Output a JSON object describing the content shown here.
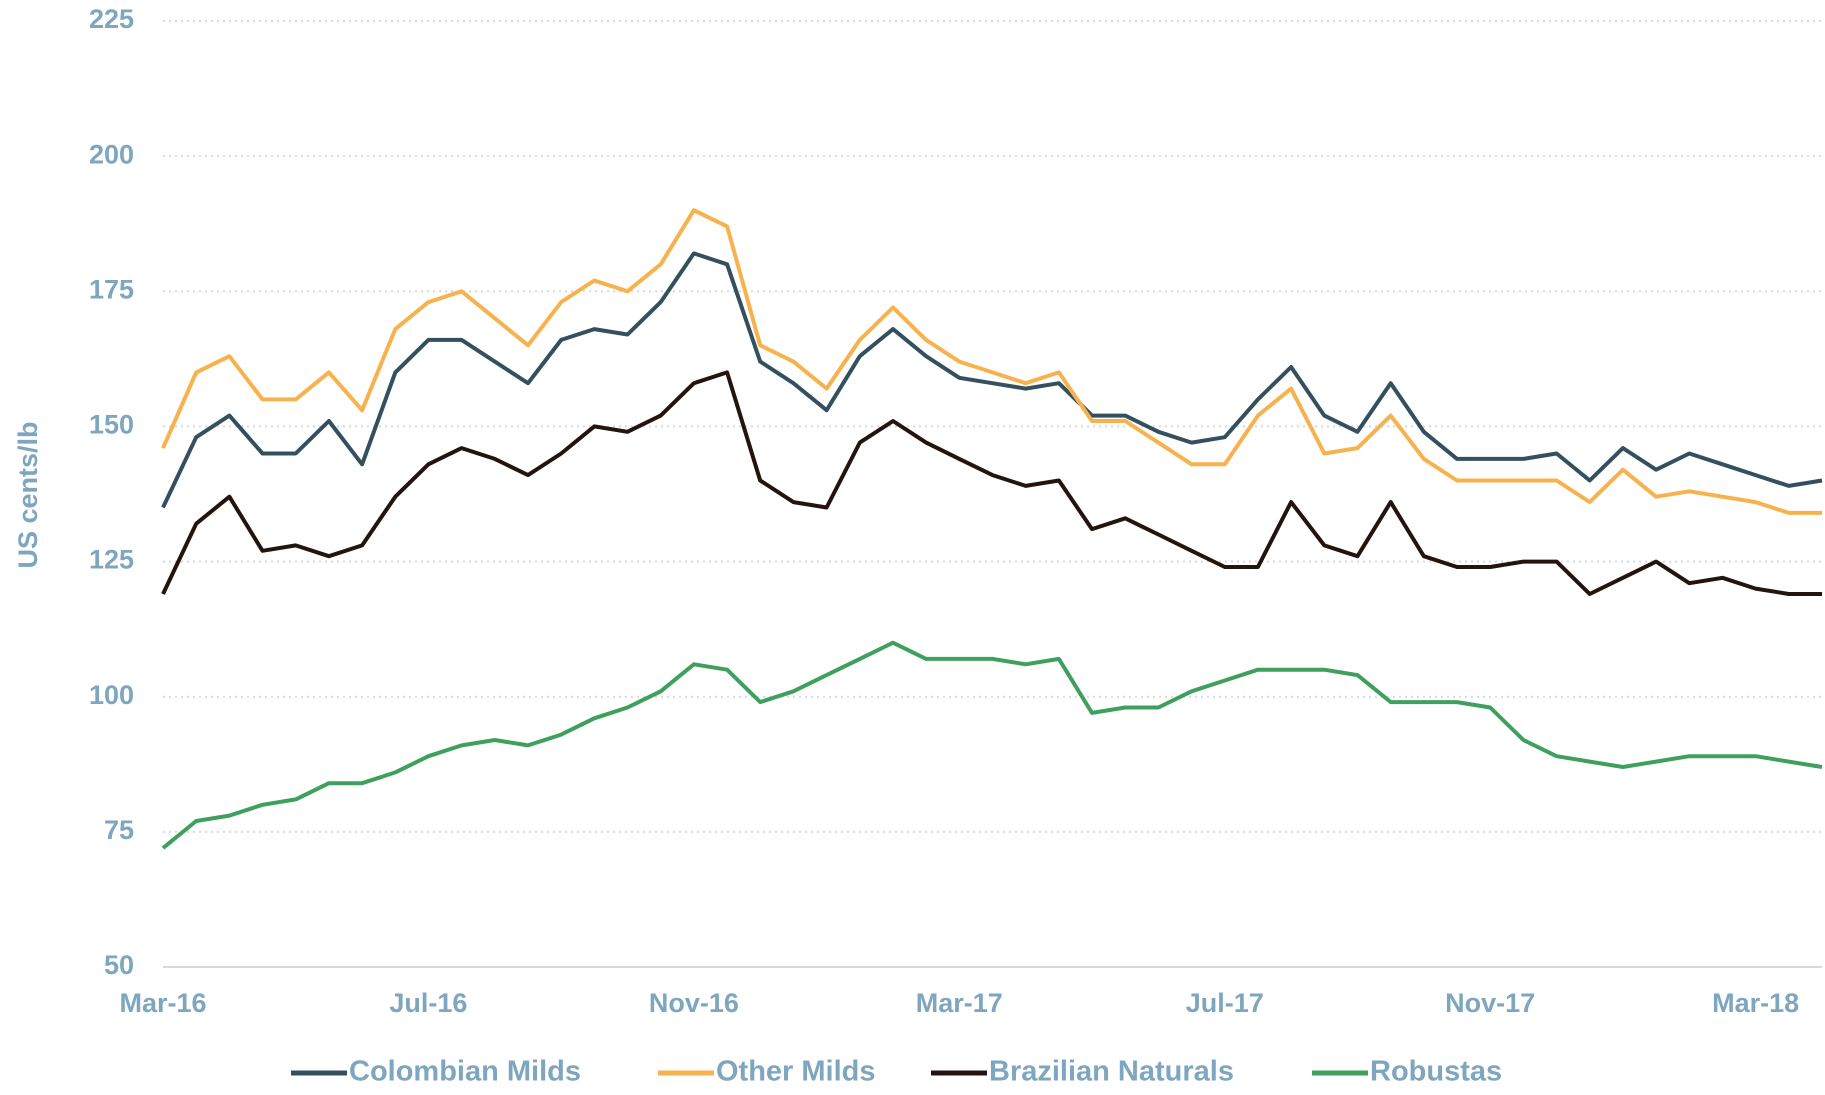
{
  "chart_data": {
    "type": "line",
    "ylabel": "US cents/lb",
    "categories": [
      "Mar-16",
      null,
      null,
      null,
      null,
      null,
      null,
      null,
      "Jul-16",
      null,
      null,
      null,
      null,
      null,
      null,
      null,
      "Nov-16",
      null,
      null,
      null,
      null,
      null,
      null,
      null,
      "Mar-17",
      null,
      null,
      null,
      null,
      null,
      null,
      null,
      "Jul-17",
      null,
      null,
      null,
      null,
      null,
      null,
      null,
      "Nov-17",
      null,
      null,
      null,
      null,
      null,
      null,
      null,
      "Mar-18",
      null,
      null
    ],
    "series": [
      {
        "name": "Colombian Milds",
        "color": "#34505f",
        "values": [
          135,
          148,
          152,
          145,
          145,
          151,
          143,
          160,
          166,
          166,
          162,
          158,
          166,
          168,
          167,
          173,
          182,
          180,
          162,
          158,
          153,
          163,
          168,
          163,
          159,
          158,
          157,
          158,
          152,
          152,
          149,
          147,
          148,
          155,
          161,
          152,
          149,
          158,
          149,
          144,
          144,
          144,
          145,
          140,
          146,
          142,
          145,
          143,
          141,
          139,
          140
        ]
      },
      {
        "name": "Other Milds",
        "color": "#f7b24d",
        "values": [
          146,
          160,
          163,
          155,
          155,
          160,
          153,
          168,
          173,
          175,
          170,
          165,
          173,
          177,
          175,
          180,
          190,
          187,
          165,
          162,
          157,
          166,
          172,
          166,
          162,
          160,
          158,
          160,
          151,
          151,
          147,
          143,
          143,
          152,
          157,
          145,
          146,
          152,
          144,
          140,
          140,
          140,
          140,
          136,
          142,
          137,
          138,
          137,
          136,
          134,
          134
        ]
      },
      {
        "name": "Brazilian Naturals",
        "color": "#24140e",
        "values": [
          119,
          132,
          137,
          127,
          128,
          126,
          128,
          137,
          143,
          146,
          144,
          141,
          145,
          150,
          149,
          152,
          158,
          160,
          140,
          136,
          135,
          147,
          151,
          147,
          144,
          141,
          139,
          140,
          131,
          133,
          130,
          127,
          124,
          124,
          136,
          128,
          126,
          136,
          126,
          124,
          124,
          125,
          125,
          119,
          122,
          125,
          121,
          122,
          120,
          119,
          119
        ]
      },
      {
        "name": "Robustas",
        "color": "#3fa05e",
        "values": [
          72,
          77,
          78,
          80,
          81,
          84,
          84,
          86,
          89,
          91,
          92,
          91,
          93,
          96,
          98,
          101,
          106,
          105,
          99,
          101,
          104,
          107,
          110,
          107,
          107,
          107,
          106,
          107,
          97,
          98,
          98,
          101,
          103,
          105,
          105,
          105,
          104,
          99,
          99,
          99,
          98,
          92,
          89,
          88,
          87,
          88,
          89,
          89,
          89,
          88,
          87
        ]
      }
    ],
    "ylim": [
      50,
      225
    ],
    "yticks": [
      50,
      75,
      100,
      125,
      150,
      175,
      200,
      225
    ],
    "grid": true,
    "legend": "bottom"
  }
}
